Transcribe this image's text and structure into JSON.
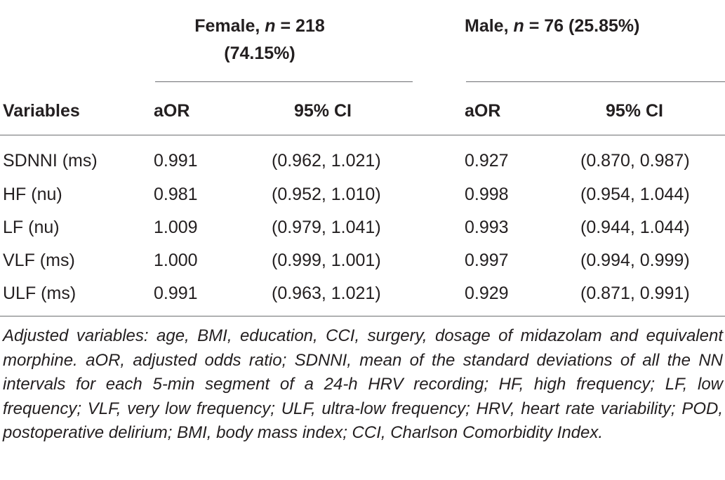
{
  "header": {
    "female_group_line1": "Female, ",
    "female_group_n": "n",
    "female_group_rest": " = 218",
    "female_group_line2": "(74.15%)",
    "male_group_pre": "Male, ",
    "male_group_n": "n",
    "male_group_rest": " = 76 (25.85%)"
  },
  "columns": {
    "variables": "Variables",
    "female_aor": "aOR",
    "female_ci": "95% CI",
    "male_aor": "aOR",
    "male_ci": "95% CI"
  },
  "rows": [
    {
      "variable": "SDNNI (ms)",
      "f_aor": "0.991",
      "f_ci": "(0.962, 1.021)",
      "m_aor": "0.927",
      "m_ci": "(0.870, 0.987)"
    },
    {
      "variable": "HF (nu)",
      "f_aor": "0.981",
      "f_ci": "(0.952, 1.010)",
      "m_aor": "0.998",
      "m_ci": "(0.954, 1.044)"
    },
    {
      "variable": "LF (nu)",
      "f_aor": "1.009",
      "f_ci": "(0.979, 1.041)",
      "m_aor": "0.993",
      "m_ci": "(0.944, 1.044)"
    },
    {
      "variable": "VLF (ms)",
      "f_aor": "1.000",
      "f_ci": "(0.999, 1.001)",
      "m_aor": "0.997",
      "m_ci": "(0.994, 0.999)"
    },
    {
      "variable": "ULF (ms)",
      "f_aor": "0.991",
      "f_ci": "(0.963, 1.021)",
      "m_aor": "0.929",
      "m_ci": "(0.871, 0.991)"
    }
  ],
  "footnote": "Adjusted variables: age, BMI, education, CCI, surgery, dosage of midazolam and equivalent morphine. aOR, adjusted odds ratio; SDNNI, mean of the standard deviations of all the NN intervals for each 5-min segment of a 24-h HRV recording; HF, high frequency; LF, low frequency; VLF, very low frequency; ULF, ultra-low frequency; HRV, heart rate variability; POD, postoperative delirium; BMI, body mass index; CCI, Charlson Comorbidity Index."
}
